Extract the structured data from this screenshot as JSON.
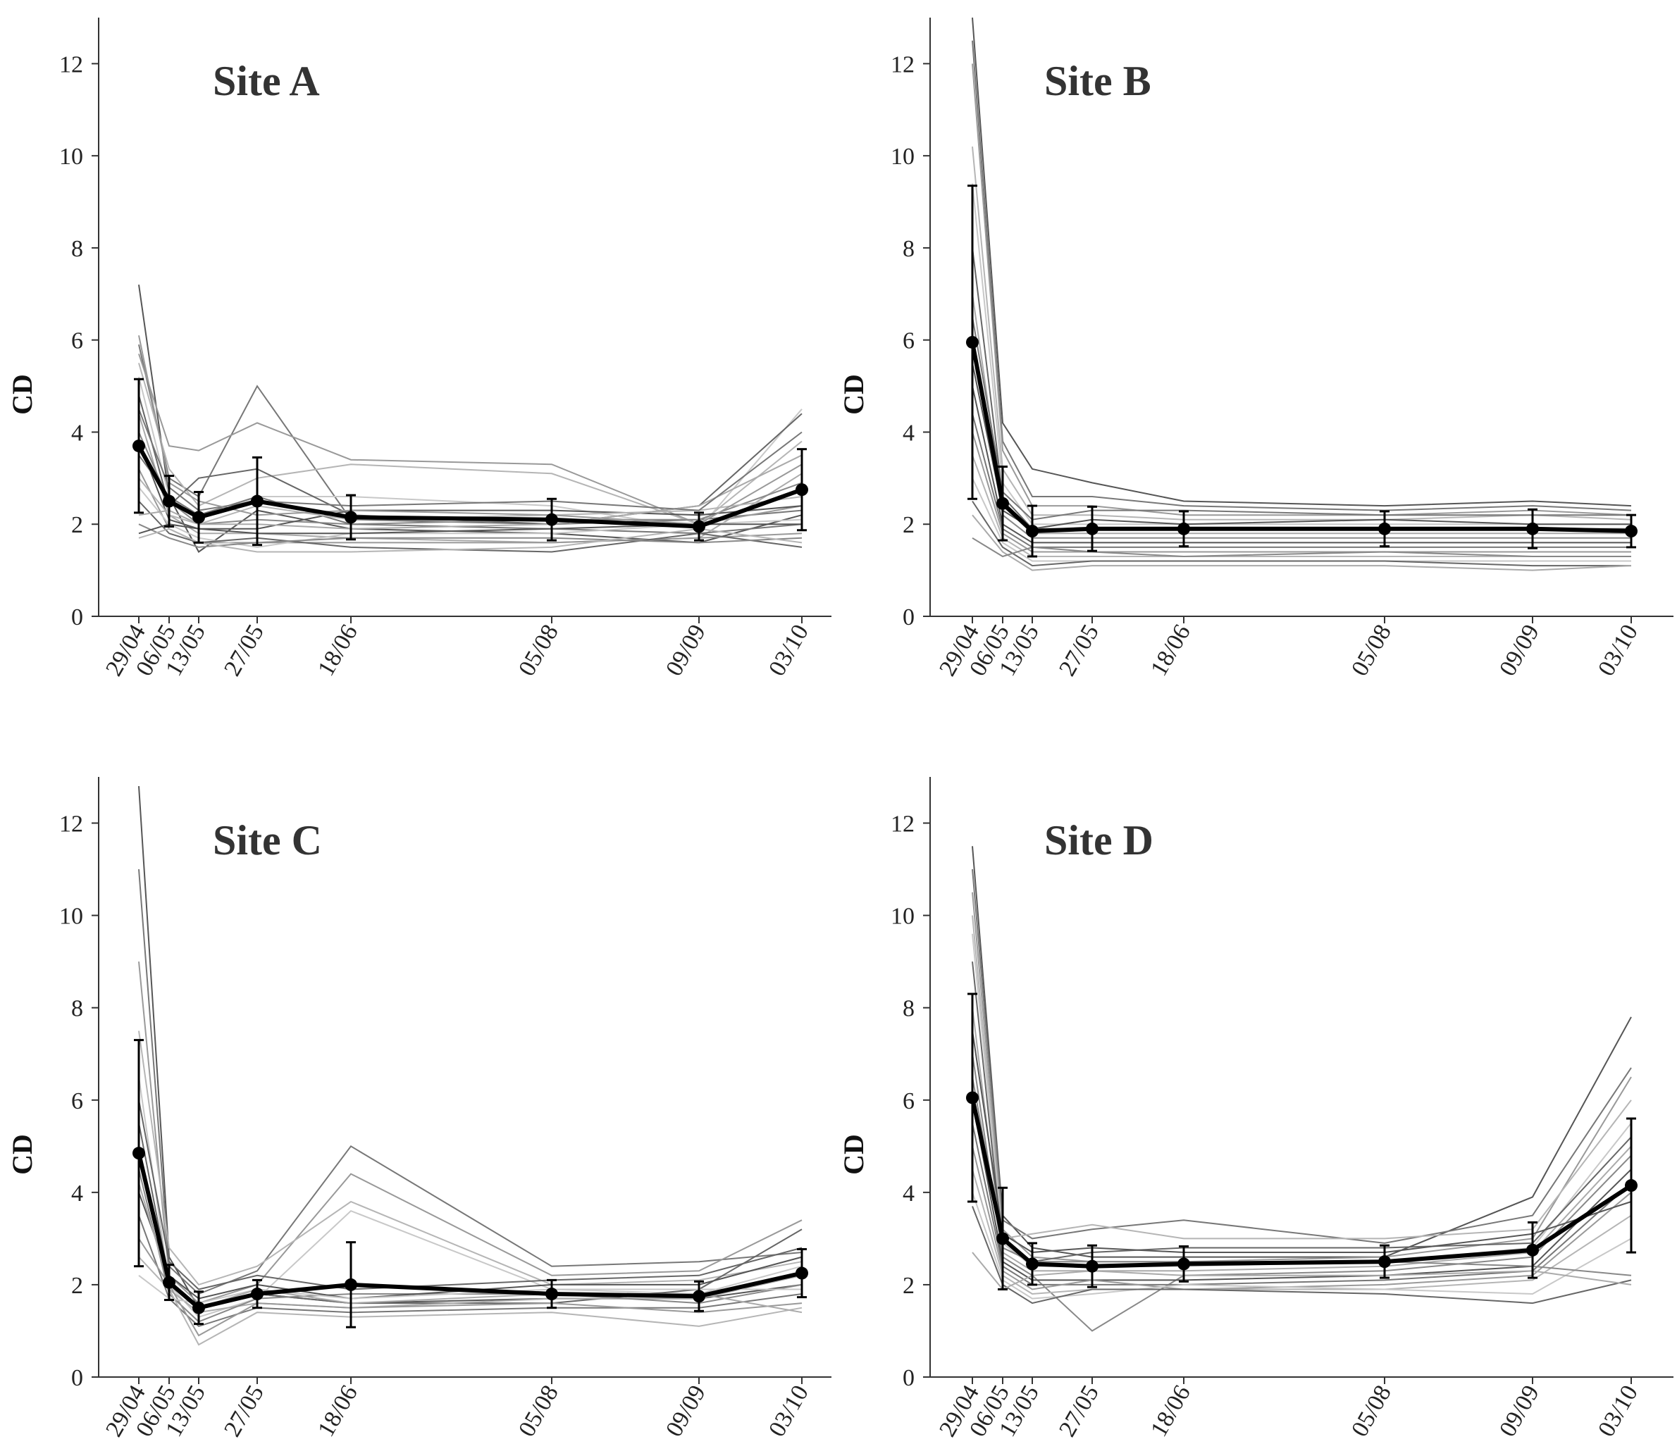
{
  "figure": {
    "colors": {
      "mean_line": "#000000",
      "individual_dark": "#555555",
      "individual_mid": "#888888",
      "individual_light": "#b5b5b5",
      "axis": "#333333"
    },
    "icons": []
  },
  "chart_data": [
    {
      "type": "line",
      "title": "Site A",
      "xlabel": "",
      "ylabel": "CD",
      "ylim": [
        0,
        13
      ],
      "yticks": [
        0,
        2,
        4,
        6,
        8,
        10,
        12
      ],
      "x_days": [
        0,
        7,
        14,
        28,
        50,
        98,
        133,
        157
      ],
      "x_tick_labels": [
        "29/04",
        "06/05",
        "13/05",
        "27/05",
        "18/06",
        "05/08",
        "09/09",
        "03/10"
      ],
      "series": [
        {
          "name": "mean",
          "values": [
            3.7,
            2.5,
            2.15,
            2.5,
            2.15,
            2.1,
            1.95,
            2.75
          ],
          "err": [
            1.45,
            0.55,
            0.55,
            0.95,
            0.48,
            0.45,
            0.3,
            0.88
          ]
        }
      ],
      "individual_series": [
        [
          7.2,
          2.6,
          1.4,
          2.3,
          1.9,
          1.8,
          1.6,
          2.2
        ],
        [
          5.9,
          3.0,
          2.6,
          5.0,
          2.1,
          2.0,
          2.1,
          2.3
        ],
        [
          5.7,
          3.7,
          3.6,
          4.2,
          3.4,
          3.3,
          2.0,
          2.4
        ],
        [
          5.5,
          3.2,
          2.4,
          3.0,
          3.3,
          3.1,
          2.0,
          3.8
        ],
        [
          5.2,
          2.6,
          2.1,
          2.6,
          2.6,
          2.4,
          1.9,
          4.5
        ],
        [
          4.8,
          2.4,
          3.0,
          3.2,
          2.2,
          2.0,
          2.4,
          4.4
        ],
        [
          4.4,
          2.2,
          1.8,
          1.8,
          1.7,
          1.6,
          1.7,
          3.1
        ],
        [
          4.0,
          2.5,
          2.0,
          2.1,
          2.0,
          2.1,
          2.1,
          2.9
        ],
        [
          3.8,
          2.1,
          1.9,
          1.9,
          2.3,
          2.3,
          2.2,
          2.4
        ],
        [
          3.5,
          2.6,
          2.2,
          2.6,
          2.0,
          1.9,
          1.8,
          2.0
        ],
        [
          3.2,
          1.9,
          1.6,
          1.6,
          1.6,
          1.6,
          1.7,
          1.8
        ],
        [
          3.0,
          2.2,
          2.0,
          2.4,
          2.1,
          2.2,
          2.3,
          2.6
        ],
        [
          2.8,
          2.0,
          1.7,
          1.5,
          1.8,
          1.8,
          2.0,
          2.1
        ],
        [
          2.5,
          1.8,
          1.6,
          1.7,
          1.5,
          1.4,
          1.8,
          1.5
        ],
        [
          2.2,
          2.3,
          2.0,
          2.0,
          1.9,
          2.0,
          2.4,
          3.5
        ],
        [
          2.0,
          1.7,
          1.5,
          1.6,
          1.7,
          1.7,
          1.6,
          1.7
        ],
        [
          1.8,
          2.0,
          1.9,
          1.8,
          1.8,
          1.9,
          2.0,
          2.0
        ],
        [
          4.5,
          2.8,
          2.3,
          2.5,
          2.4,
          2.5,
          2.3,
          4.0
        ],
        [
          6.1,
          2.9,
          2.5,
          2.2,
          2.3,
          2.2,
          2.0,
          3.3
        ],
        [
          1.7,
          1.9,
          1.6,
          1.4,
          1.4,
          1.5,
          1.9,
          1.6
        ]
      ]
    },
    {
      "type": "line",
      "title": "Site B",
      "xlabel": "",
      "ylabel": "CD",
      "ylim": [
        0,
        13
      ],
      "yticks": [
        0,
        2,
        4,
        6,
        8,
        10,
        12
      ],
      "x_days": [
        0,
        7,
        14,
        28,
        50,
        98,
        133,
        157
      ],
      "x_tick_labels": [
        "29/04",
        "06/05",
        "13/05",
        "27/05",
        "18/06",
        "05/08",
        "09/09",
        "03/10"
      ],
      "series": [
        {
          "name": "mean",
          "values": [
            5.95,
            2.45,
            1.85,
            1.9,
            1.9,
            1.9,
            1.9,
            1.85
          ],
          "err": [
            3.4,
            0.8,
            0.55,
            0.48,
            0.38,
            0.38,
            0.42,
            0.35
          ]
        }
      ],
      "individual_series": [
        [
          13.0,
          4.2,
          3.2,
          2.9,
          2.5,
          2.4,
          2.5,
          2.4
        ],
        [
          12.5,
          3.8,
          2.6,
          2.6,
          2.4,
          2.3,
          2.4,
          2.3
        ],
        [
          12.0,
          3.6,
          2.4,
          2.4,
          2.2,
          2.2,
          2.3,
          2.2
        ],
        [
          10.2,
          3.2,
          2.2,
          2.2,
          2.1,
          2.1,
          2.2,
          2.1
        ],
        [
          9.4,
          2.9,
          2.0,
          2.0,
          2.0,
          2.0,
          2.0,
          2.0
        ],
        [
          8.0,
          2.6,
          1.9,
          1.9,
          1.9,
          1.9,
          1.9,
          1.9
        ],
        [
          7.0,
          2.4,
          1.8,
          1.8,
          1.8,
          1.8,
          1.8,
          1.8
        ],
        [
          6.0,
          2.2,
          1.7,
          1.7,
          1.7,
          1.7,
          1.7,
          1.7
        ],
        [
          5.0,
          2.0,
          1.6,
          1.6,
          1.6,
          1.6,
          1.6,
          1.6
        ],
        [
          4.4,
          1.9,
          1.5,
          1.5,
          1.5,
          1.5,
          1.5,
          1.5
        ],
        [
          4.0,
          1.8,
          1.4,
          1.4,
          1.4,
          1.4,
          1.4,
          1.4
        ],
        [
          3.5,
          1.7,
          1.3,
          1.3,
          1.3,
          1.3,
          1.3,
          1.3
        ],
        [
          3.0,
          1.6,
          1.2,
          1.2,
          1.2,
          1.2,
          1.2,
          1.2
        ],
        [
          2.5,
          1.5,
          1.1,
          1.2,
          1.2,
          1.2,
          1.1,
          1.1
        ],
        [
          2.2,
          1.4,
          1.0,
          1.1,
          1.1,
          1.1,
          1.0,
          1.1
        ],
        [
          1.7,
          1.3,
          1.5,
          1.4,
          1.3,
          1.4,
          1.3,
          1.3
        ],
        [
          5.5,
          2.3,
          1.9,
          2.1,
          2.0,
          2.1,
          2.0,
          2.0
        ],
        [
          6.5,
          2.7,
          2.1,
          2.3,
          2.3,
          2.2,
          2.2,
          2.2
        ]
      ]
    },
    {
      "type": "line",
      "title": "Site C",
      "xlabel": "",
      "ylabel": "CD",
      "ylim": [
        0,
        13
      ],
      "yticks": [
        0,
        2,
        4,
        6,
        8,
        10,
        12
      ],
      "x_days": [
        0,
        7,
        14,
        28,
        50,
        98,
        133,
        157
      ],
      "x_tick_labels": [
        "29/04",
        "06/05",
        "13/05",
        "27/05",
        "18/06",
        "05/08",
        "09/09",
        "03/10"
      ],
      "series": [
        {
          "name": "mean",
          "values": [
            4.85,
            2.05,
            1.5,
            1.8,
            2.0,
            1.8,
            1.75,
            2.25
          ],
          "err": [
            2.45,
            0.38,
            0.35,
            0.3,
            0.92,
            0.3,
            0.32,
            0.52
          ]
        }
      ],
      "individual_series": [
        [
          12.8,
          2.6,
          1.5,
          1.8,
          1.6,
          1.7,
          1.7,
          2.0
        ],
        [
          11.0,
          2.4,
          1.8,
          2.3,
          5.0,
          2.4,
          2.5,
          2.7
        ],
        [
          9.0,
          2.2,
          1.6,
          2.0,
          4.4,
          2.2,
          2.3,
          3.4
        ],
        [
          7.5,
          2.8,
          2.0,
          2.4,
          3.8,
          2.0,
          2.1,
          2.5
        ],
        [
          6.5,
          2.0,
          1.3,
          1.7,
          3.6,
          1.9,
          1.8,
          2.4
        ],
        [
          5.5,
          2.1,
          1.5,
          1.8,
          1.6,
          1.6,
          1.9,
          3.2
        ],
        [
          5.0,
          1.9,
          1.4,
          1.6,
          1.5,
          1.7,
          1.7,
          2.2
        ],
        [
          4.5,
          1.8,
          1.2,
          1.7,
          1.8,
          1.8,
          1.6,
          2.0
        ],
        [
          4.0,
          2.2,
          1.7,
          2.0,
          1.7,
          2.0,
          2.0,
          2.6
        ],
        [
          3.5,
          1.7,
          1.1,
          1.5,
          1.4,
          1.5,
          1.5,
          1.8
        ],
        [
          3.0,
          2.0,
          0.9,
          1.6,
          1.5,
          1.6,
          1.4,
          1.6
        ],
        [
          2.6,
          1.9,
          0.7,
          1.4,
          1.3,
          1.4,
          1.1,
          1.5
        ],
        [
          2.2,
          1.7,
          1.6,
          1.9,
          1.7,
          1.9,
          1.9,
          1.9
        ],
        [
          6.0,
          2.5,
          1.9,
          2.2,
          1.9,
          2.1,
          2.2,
          2.8
        ],
        [
          4.2,
          2.0,
          1.5,
          1.9,
          1.6,
          1.8,
          1.8,
          1.4
        ]
      ]
    },
    {
      "type": "line",
      "title": "Site D",
      "xlabel": "",
      "ylabel": "CD",
      "ylim": [
        0,
        13
      ],
      "yticks": [
        0,
        2,
        4,
        6,
        8,
        10,
        12
      ],
      "x_days": [
        0,
        7,
        14,
        28,
        50,
        98,
        133,
        157
      ],
      "x_tick_labels": [
        "29/04",
        "06/05",
        "13/05",
        "27/05",
        "18/06",
        "05/08",
        "09/09",
        "03/10"
      ],
      "series": [
        {
          "name": "mean",
          "values": [
            6.05,
            3.0,
            2.45,
            2.4,
            2.45,
            2.5,
            2.75,
            4.15
          ],
          "err": [
            2.25,
            1.1,
            0.45,
            0.45,
            0.38,
            0.35,
            0.6,
            1.45
          ]
        }
      ],
      "individual_series": [
        [
          11.5,
          3.5,
          2.8,
          2.6,
          2.6,
          2.6,
          3.9,
          7.8
        ],
        [
          11.0,
          3.4,
          3.0,
          3.2,
          3.4,
          2.9,
          3.5,
          6.7
        ],
        [
          10.5,
          3.2,
          2.6,
          2.5,
          2.5,
          2.6,
          3.0,
          6.5
        ],
        [
          10.0,
          3.0,
          3.1,
          3.3,
          3.0,
          3.0,
          3.2,
          6.0
        ],
        [
          9.6,
          2.9,
          2.4,
          2.4,
          2.4,
          2.5,
          2.8,
          5.5
        ],
        [
          9.0,
          2.8,
          2.5,
          2.7,
          2.8,
          2.8,
          2.9,
          5.2
        ],
        [
          8.0,
          2.7,
          2.3,
          2.3,
          2.3,
          2.4,
          2.7,
          5.0
        ],
        [
          7.0,
          2.6,
          2.2,
          1.0,
          2.2,
          2.3,
          2.6,
          4.8
        ],
        [
          6.0,
          2.5,
          2.1,
          2.1,
          2.1,
          2.2,
          2.4,
          4.5
        ],
        [
          5.5,
          2.4,
          2.0,
          2.0,
          2.0,
          2.1,
          2.3,
          4.2
        ],
        [
          5.0,
          2.3,
          1.9,
          2.1,
          1.9,
          2.0,
          2.2,
          4.0
        ],
        [
          4.5,
          2.2,
          1.8,
          1.9,
          1.9,
          1.9,
          2.1,
          3.5
        ],
        [
          4.0,
          2.1,
          1.7,
          1.8,
          2.0,
          1.9,
          1.8,
          3.0
        ],
        [
          3.7,
          2.0,
          1.6,
          1.9,
          1.9,
          1.8,
          1.6,
          2.1
        ],
        [
          2.7,
          1.9,
          2.2,
          2.3,
          2.2,
          2.2,
          2.3,
          2.0
        ],
        [
          6.5,
          2.8,
          2.5,
          2.5,
          2.5,
          2.5,
          2.4,
          2.2
        ],
        [
          7.5,
          3.1,
          2.7,
          2.8,
          2.7,
          2.7,
          3.1,
          3.8
        ]
      ]
    }
  ]
}
